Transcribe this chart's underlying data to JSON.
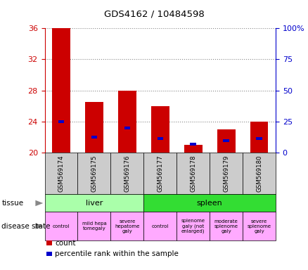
{
  "title": "GDS4162 / 10484598",
  "samples": [
    "GSM569174",
    "GSM569175",
    "GSM569176",
    "GSM569177",
    "GSM569178",
    "GSM569179",
    "GSM569180"
  ],
  "count_values": [
    36,
    26.5,
    28,
    26,
    21,
    23,
    24
  ],
  "count_bottom": [
    20,
    20,
    20,
    20,
    20,
    20,
    20
  ],
  "percentile_values": [
    24.0,
    22.0,
    23.2,
    21.8,
    21.1,
    21.5,
    21.8
  ],
  "ylim_left": [
    20,
    36
  ],
  "ylim_right": [
    0,
    100
  ],
  "yticks_left": [
    20,
    24,
    28,
    32,
    36
  ],
  "yticks_right": [
    0,
    25,
    50,
    75,
    100
  ],
  "tissue_groups": [
    {
      "label": "liver",
      "span": [
        0,
        3
      ],
      "color": "#AAFFAA"
    },
    {
      "label": "spleen",
      "span": [
        3,
        7
      ],
      "color": "#33DD33"
    }
  ],
  "disease_states": [
    {
      "label": "control",
      "span": [
        0,
        1
      ],
      "color": "#FFAAFF"
    },
    {
      "label": "mild hepa\ntomegaly",
      "span": [
        1,
        2
      ],
      "color": "#FFAAFF"
    },
    {
      "label": "severe\nhepatome\ngaly",
      "span": [
        2,
        3
      ],
      "color": "#FFAAFF"
    },
    {
      "label": "control",
      "span": [
        3,
        4
      ],
      "color": "#FFAAFF"
    },
    {
      "label": "splenome\ngaly (not\nenlarged)",
      "span": [
        4,
        5
      ],
      "color": "#FFAAFF"
    },
    {
      "label": "moderate\nsplenome\ngaly",
      "span": [
        5,
        6
      ],
      "color": "#FFAAFF"
    },
    {
      "label": "severe\nsplenome\ngaly",
      "span": [
        6,
        7
      ],
      "color": "#FFAAFF"
    }
  ],
  "bar_color": "#CC0000",
  "percentile_color": "#0000CC",
  "sample_bg_color": "#CCCCCC",
  "left_tick_color": "#CC0000",
  "right_tick_color": "#0000CC",
  "grid_color": "#888888",
  "legend_items": [
    {
      "color": "#CC0000",
      "label": "count"
    },
    {
      "color": "#0000CC",
      "label": "percentile rank within the sample"
    }
  ]
}
